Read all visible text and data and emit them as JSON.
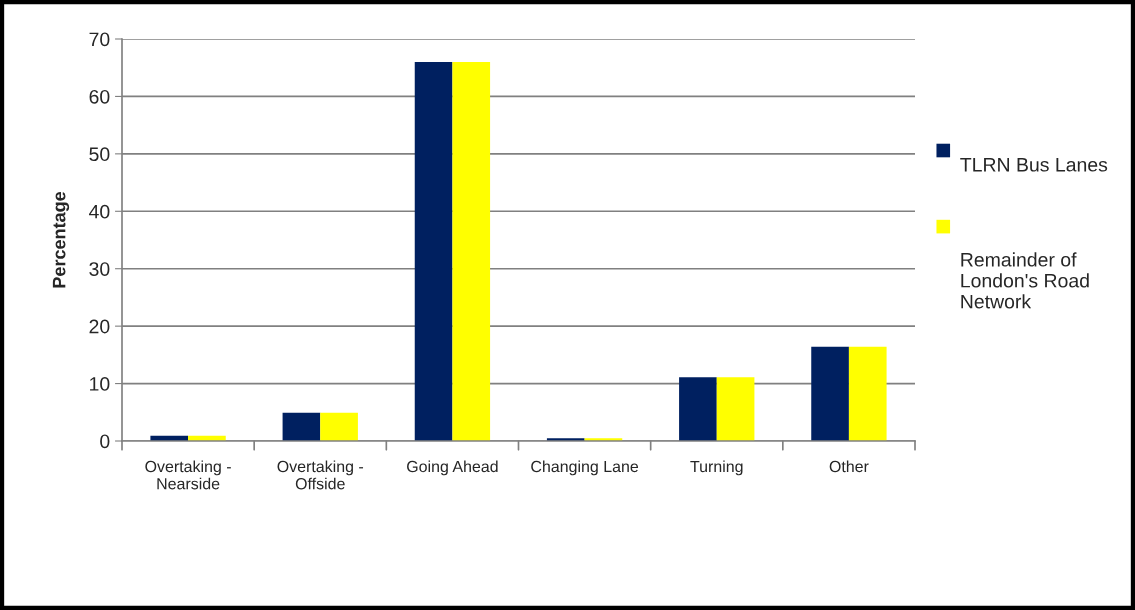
{
  "chart_data": {
    "type": "bar",
    "ylabel": "Percentage",
    "categories": [
      "Overtaking -\nNearside",
      "Overtaking -\nOffside",
      "Going Ahead",
      "Changing Lane",
      "Turning",
      "Other"
    ],
    "series": [
      {
        "name": "TLRN Bus Lanes",
        "color": "#002060",
        "values": [
          0.9,
          4.9,
          66.0,
          0.5,
          11.1,
          16.4
        ]
      },
      {
        "name": "Remainder of London's Road Network",
        "color": "#ffff00",
        "values": [
          0.9,
          4.9,
          66.0,
          0.5,
          11.1,
          16.4
        ]
      }
    ],
    "ylim": [
      0,
      70
    ],
    "yticks": [
      0,
      10,
      20,
      30,
      40,
      50,
      60,
      70
    ],
    "grid": "y",
    "legend": "right"
  }
}
